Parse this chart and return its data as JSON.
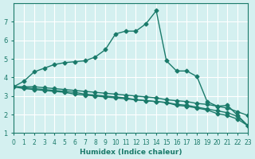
{
  "xlabel": "Humidex (Indice chaleur)",
  "ylabel": "",
  "background_color": "#d4f0f0",
  "grid_color": "#ffffff",
  "line_color": "#1a7a6a",
  "xlim": [
    0,
    23
  ],
  "ylim": [
    1,
    8
  ],
  "yticks": [
    1,
    2,
    3,
    4,
    5,
    6,
    7
  ],
  "xticks": [
    0,
    1,
    2,
    3,
    4,
    5,
    6,
    7,
    8,
    9,
    10,
    11,
    12,
    13,
    14,
    15,
    16,
    17,
    18,
    19,
    20,
    21,
    22,
    23
  ],
  "line1_x": [
    0,
    1,
    2,
    3,
    4,
    5,
    6,
    7,
    8,
    9,
    10,
    11,
    12,
    13,
    14,
    15,
    16,
    17,
    18,
    19,
    20,
    21,
    22,
    23
  ],
  "line1_y": [
    3.5,
    3.8,
    4.3,
    4.5,
    4.7,
    4.8,
    4.85,
    4.9,
    5.1,
    5.5,
    6.35,
    6.5,
    6.5,
    6.9,
    7.6,
    4.9,
    4.35,
    4.35,
    4.05,
    2.7,
    2.45,
    2.5,
    1.95,
    1.4
  ],
  "line2_x": [
    0,
    1,
    2,
    3,
    4,
    5,
    6,
    7,
    8,
    9,
    10,
    11,
    12,
    13,
    14,
    15,
    16,
    17,
    18,
    19,
    20,
    21,
    22,
    23
  ],
  "line2_y": [
    3.5,
    3.5,
    3.5,
    3.45,
    3.4,
    3.35,
    3.3,
    3.25,
    3.2,
    3.15,
    3.1,
    3.05,
    3.0,
    2.95,
    2.9,
    2.8,
    2.75,
    2.7,
    2.6,
    2.55,
    2.45,
    2.35,
    2.15,
    1.95
  ],
  "line3_x": [
    0,
    1,
    2,
    3,
    4,
    5,
    6,
    7,
    8,
    9,
    10,
    11,
    12,
    13,
    14,
    15,
    16,
    17,
    18,
    19,
    20,
    21,
    22,
    23
  ],
  "line3_y": [
    3.5,
    3.4,
    3.35,
    3.3,
    3.25,
    3.2,
    3.1,
    3.05,
    3.0,
    2.95,
    2.9,
    2.85,
    2.8,
    2.75,
    2.7,
    2.65,
    2.55,
    2.5,
    2.4,
    2.3,
    2.2,
    2.1,
    1.9,
    1.4
  ],
  "line4_x": [
    0,
    1,
    2,
    3,
    4,
    5,
    6,
    7,
    8,
    9,
    10,
    11,
    12,
    13,
    14,
    15,
    16,
    17,
    18,
    19,
    20,
    21,
    22,
    23
  ],
  "line4_y": [
    3.5,
    3.45,
    3.4,
    3.35,
    3.3,
    3.25,
    3.2,
    3.1,
    3.05,
    3.0,
    2.95,
    2.9,
    2.8,
    2.75,
    2.7,
    2.65,
    2.5,
    2.45,
    2.35,
    2.25,
    2.05,
    1.95,
    1.75,
    1.4
  ]
}
